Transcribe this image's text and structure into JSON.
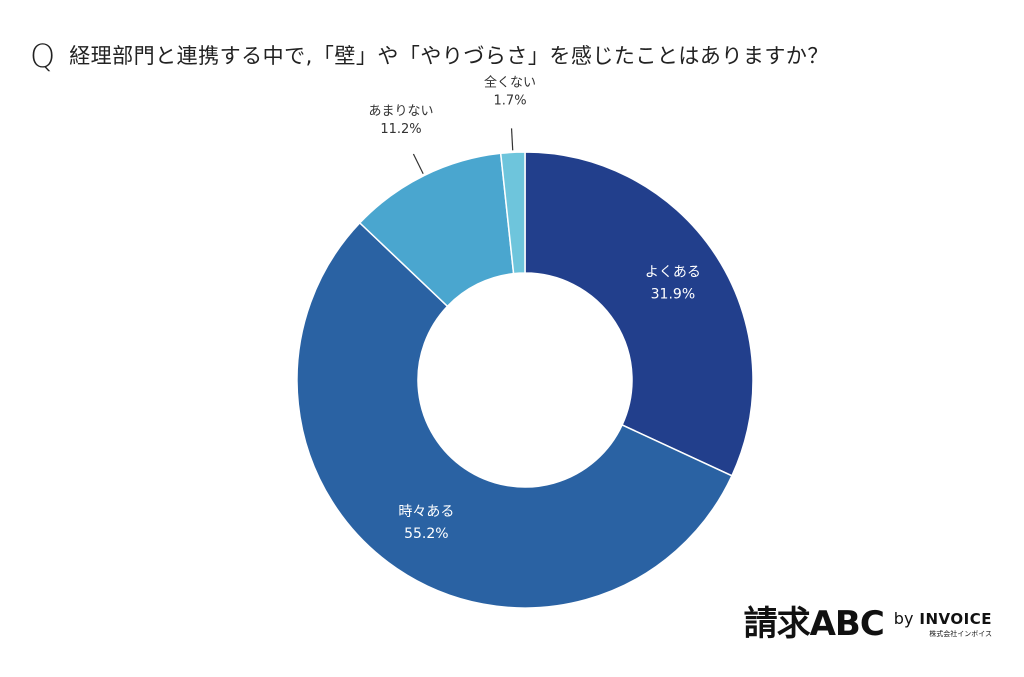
{
  "header": {
    "q_mark": "Q",
    "question": "経理部門と連携する中で,「壁」や「やりづらさ」を感じたことはありますか？"
  },
  "brand": {
    "main": "請求ABC",
    "by": "by",
    "company": "INVOICE",
    "company_sub": "株式会社インボイス"
  },
  "chart_data": {
    "type": "pie",
    "donut": true,
    "start": "top, clockwise",
    "slices": [
      {
        "label": "よくある",
        "value": 31.9,
        "display": "31.9%",
        "color": "#223f8c",
        "label_pos": "inside"
      },
      {
        "label": "時々ある",
        "value": 55.2,
        "display": "55.2%",
        "color": "#2a62a3",
        "label_pos": "inside"
      },
      {
        "label": "あまりない",
        "value": 11.2,
        "display": "11.2%",
        "color": "#4aa6cf",
        "label_pos": "outside"
      },
      {
        "label": "全くない",
        "value": 1.7,
        "display": "1.7%",
        "color": "#6ec5dc",
        "label_pos": "outside"
      }
    ]
  }
}
